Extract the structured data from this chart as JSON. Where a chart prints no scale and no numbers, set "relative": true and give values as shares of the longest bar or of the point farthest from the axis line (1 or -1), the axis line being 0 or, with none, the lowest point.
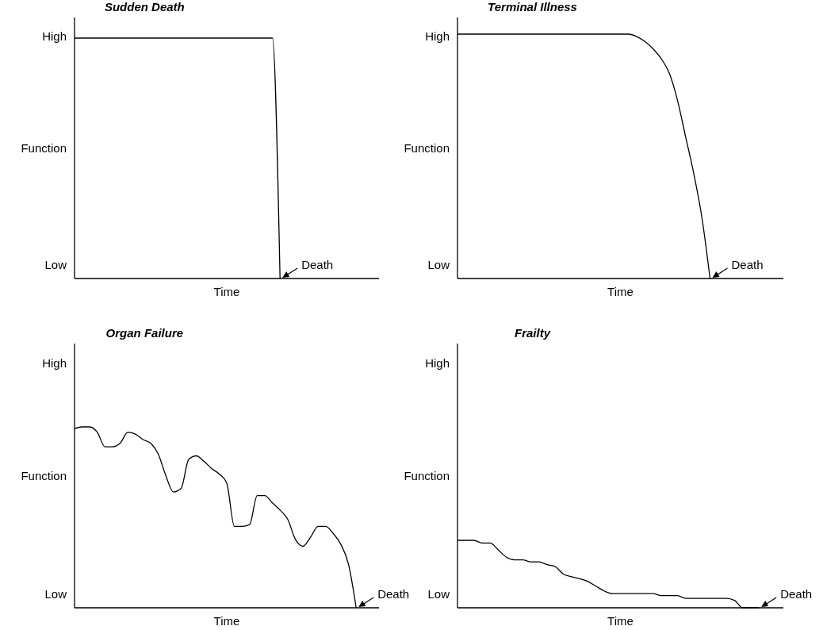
{
  "chart_data": [
    {
      "type": "line",
      "title": "Sudden Death",
      "xlabel": "Time",
      "ylabel": "Function",
      "relative": true,
      "color": "#000000",
      "annotations": [
        "High",
        "Low",
        "Death"
      ],
      "categories": [
        null,
        null,
        null,
        null,
        null,
        null,
        null,
        null,
        null,
        null,
        null,
        null,
        null,
        null,
        null,
        null,
        null,
        null,
        null,
        null,
        null,
        null,
        null,
        null,
        null,
        null,
        null,
        null,
        null,
        null,
        null,
        null,
        null,
        null,
        null,
        null,
        null,
        null,
        null,
        null,
        null
      ],
      "values": [
        1,
        1,
        1,
        1,
        1,
        1,
        1,
        1,
        1,
        1,
        1,
        1,
        1,
        1,
        1,
        1,
        1,
        1,
        1,
        1,
        1,
        1,
        1,
        1,
        1,
        1,
        1,
        0,
        null,
        null,
        null,
        null,
        null,
        null,
        null,
        null,
        null,
        null,
        null,
        null,
        null
      ]
    },
    {
      "type": "line",
      "title": "Terminal Illness",
      "xlabel": "Time",
      "ylabel": "Function",
      "relative": true,
      "color": "#000000",
      "annotations": [
        "High",
        "Low",
        "Death"
      ],
      "categories": [
        null,
        null,
        null,
        null,
        null,
        null,
        null,
        null,
        null,
        null,
        null,
        null,
        null,
        null,
        null,
        null,
        null,
        null,
        null,
        null,
        null,
        null,
        null,
        null,
        null,
        null,
        null,
        null,
        null,
        null,
        null,
        null,
        null,
        null,
        null,
        null,
        null,
        null,
        null,
        null,
        null
      ],
      "values": [
        1,
        1,
        1,
        1,
        1,
        1,
        1,
        1,
        1,
        1,
        1,
        1,
        1,
        1,
        1,
        1,
        1,
        1,
        1,
        1,
        1,
        1,
        0.99,
        0.97,
        0.94,
        0.9,
        0.84,
        0.73,
        0.58,
        0.43,
        0.25,
        0,
        null,
        null,
        null,
        null,
        null,
        null,
        null,
        null,
        null
      ]
    },
    {
      "type": "line",
      "title": "Organ Failure",
      "xlabel": "Time",
      "ylabel": "Function",
      "relative": true,
      "color": "#000000",
      "annotations": [
        "High",
        "Low",
        "Death"
      ],
      "categories": [
        null,
        null,
        null,
        null,
        null,
        null,
        null,
        null,
        null,
        null,
        null,
        null,
        null,
        null,
        null,
        null,
        null,
        null,
        null,
        null,
        null,
        null,
        null,
        null,
        null,
        null,
        null,
        null,
        null,
        null,
        null,
        null,
        null,
        null,
        null,
        null,
        null,
        null,
        null,
        null,
        null
      ],
      "values": [
        0.99,
        1,
        1,
        0.97,
        0.89,
        0.89,
        0.91,
        0.97,
        0.96,
        0.93,
        0.91,
        0.85,
        0.73,
        0.64,
        0.66,
        0.82,
        0.84,
        0.81,
        0.77,
        0.74,
        0.69,
        0.45,
        0.45,
        0.46,
        0.62,
        0.62,
        0.58,
        0.54,
        0.49,
        0.38,
        0.34,
        0.39,
        0.45,
        0.45,
        0.41,
        0.35,
        0.24,
        0,
        null,
        null,
        null
      ]
    },
    {
      "type": "line",
      "title": "Frailty",
      "xlabel": "Time",
      "ylabel": "Function",
      "relative": true,
      "color": "#000000",
      "annotations": [
        "High",
        "Low",
        "Death"
      ],
      "categories": [
        null,
        null,
        null,
        null,
        null,
        null,
        null,
        null,
        null,
        null,
        null,
        null,
        null,
        null,
        null,
        null,
        null,
        null,
        null,
        null,
        null,
        null,
        null,
        null,
        null,
        null,
        null,
        null,
        null,
        null,
        null,
        null,
        null,
        null,
        null,
        null,
        null,
        null,
        null,
        null,
        null
      ],
      "values": [
        1,
        1,
        1,
        0.96,
        0.96,
        0.86,
        0.75,
        0.71,
        0.71,
        0.68,
        0.68,
        0.64,
        0.61,
        0.5,
        0.46,
        0.43,
        0.39,
        0.32,
        0.25,
        0.21,
        0.21,
        0.21,
        0.21,
        0.21,
        0.21,
        0.18,
        0.18,
        0.18,
        0.14,
        0.14,
        0.14,
        0.14,
        0.14,
        0.14,
        0.11,
        0,
        0,
        0,
        null,
        null,
        null
      ]
    }
  ]
}
